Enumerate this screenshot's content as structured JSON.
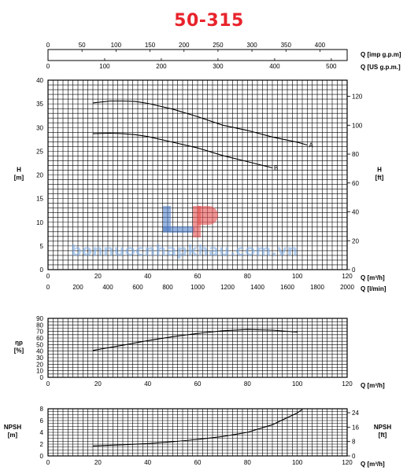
{
  "title": "50-315",
  "watermark": "bonnuocnhapkhau.com.vn",
  "colors": {
    "title": "#e8232b",
    "curve": "#000000",
    "grid": "#000000",
    "watermark": "#78aae6"
  },
  "top_axes": [
    {
      "label": "Q [imp g.p.m]",
      "ticks": [
        0,
        50,
        100,
        150,
        200,
        250,
        300,
        350,
        400
      ],
      "max": 440
    },
    {
      "label": "Q [US g.p.m.]",
      "ticks": [
        0,
        100,
        200,
        300,
        400,
        500
      ],
      "max": 528
    }
  ],
  "chart_data": [
    {
      "type": "line",
      "name": "head",
      "ylabel_lines": [
        "H",
        "[m]"
      ],
      "right_label_lines": [
        "H",
        "[ft]"
      ],
      "xlabel": "Q [m³/h]",
      "xlabel2": "Q [l/min]",
      "xlim": [
        0,
        120
      ],
      "ylim": [
        0,
        40
      ],
      "xticks": [
        0,
        20,
        40,
        60,
        80,
        100,
        120
      ],
      "x2ticks": [
        0,
        200,
        400,
        600,
        800,
        1000,
        1200,
        1400,
        1600,
        1800,
        2000
      ],
      "yticks": [
        0,
        5,
        10,
        15,
        20,
        25,
        30,
        35,
        40
      ],
      "right_ticks": [
        0,
        20,
        40,
        60,
        80,
        100,
        120
      ],
      "right_max": 131.2,
      "grid": true,
      "series": [
        {
          "name": "A",
          "x": [
            18,
            25,
            30,
            35,
            40,
            50,
            60,
            70,
            80,
            90,
            100,
            104
          ],
          "y": [
            35.2,
            35.6,
            35.6,
            35.5,
            35.1,
            33.9,
            32.3,
            30.5,
            29.4,
            28.0,
            26.9,
            26.3
          ]
        },
        {
          "name": "B",
          "x": [
            18,
            25,
            30,
            35,
            40,
            50,
            60,
            70,
            80,
            90
          ],
          "y": [
            28.7,
            28.8,
            28.7,
            28.5,
            28.1,
            26.9,
            25.7,
            24.1,
            22.8,
            21.5
          ]
        }
      ]
    },
    {
      "type": "line",
      "name": "efficiency",
      "ylabel_lines": [
        "ηp",
        "[%]"
      ],
      "xlabel": "Q [m³/h]",
      "xlim": [
        0,
        120
      ],
      "ylim": [
        0,
        90
      ],
      "xticks": [
        0,
        20,
        40,
        60,
        80,
        100,
        120
      ],
      "yticks": [
        0,
        10,
        20,
        30,
        40,
        50,
        60,
        70,
        80,
        90
      ],
      "grid": true,
      "series": [
        {
          "x": [
            18,
            30,
            40,
            50,
            60,
            70,
            80,
            90,
            100
          ],
          "y": [
            41,
            49,
            56,
            62,
            67,
            71,
            73,
            72,
            69
          ]
        }
      ]
    },
    {
      "type": "line",
      "name": "npsh",
      "ylabel_lines": [
        "NPSH",
        "[m]"
      ],
      "right_label_lines": [
        "NPSH",
        "[ft]"
      ],
      "xlabel": "Q [m³/h]",
      "xlim": [
        0,
        120
      ],
      "ylim": [
        0,
        8
      ],
      "xticks": [
        0,
        20,
        40,
        60,
        80,
        100,
        120
      ],
      "yticks": [
        0,
        2,
        4,
        6,
        8
      ],
      "right_ticks": [
        0,
        8,
        16,
        24
      ],
      "right_max": 26.2,
      "grid": true,
      "series": [
        {
          "x": [
            18,
            30,
            40,
            50,
            60,
            70,
            80,
            90,
            100,
            102
          ],
          "y": [
            1.7,
            1.9,
            2.1,
            2.4,
            2.8,
            3.3,
            4.0,
            5.3,
            7.3,
            7.9
          ]
        }
      ]
    }
  ]
}
